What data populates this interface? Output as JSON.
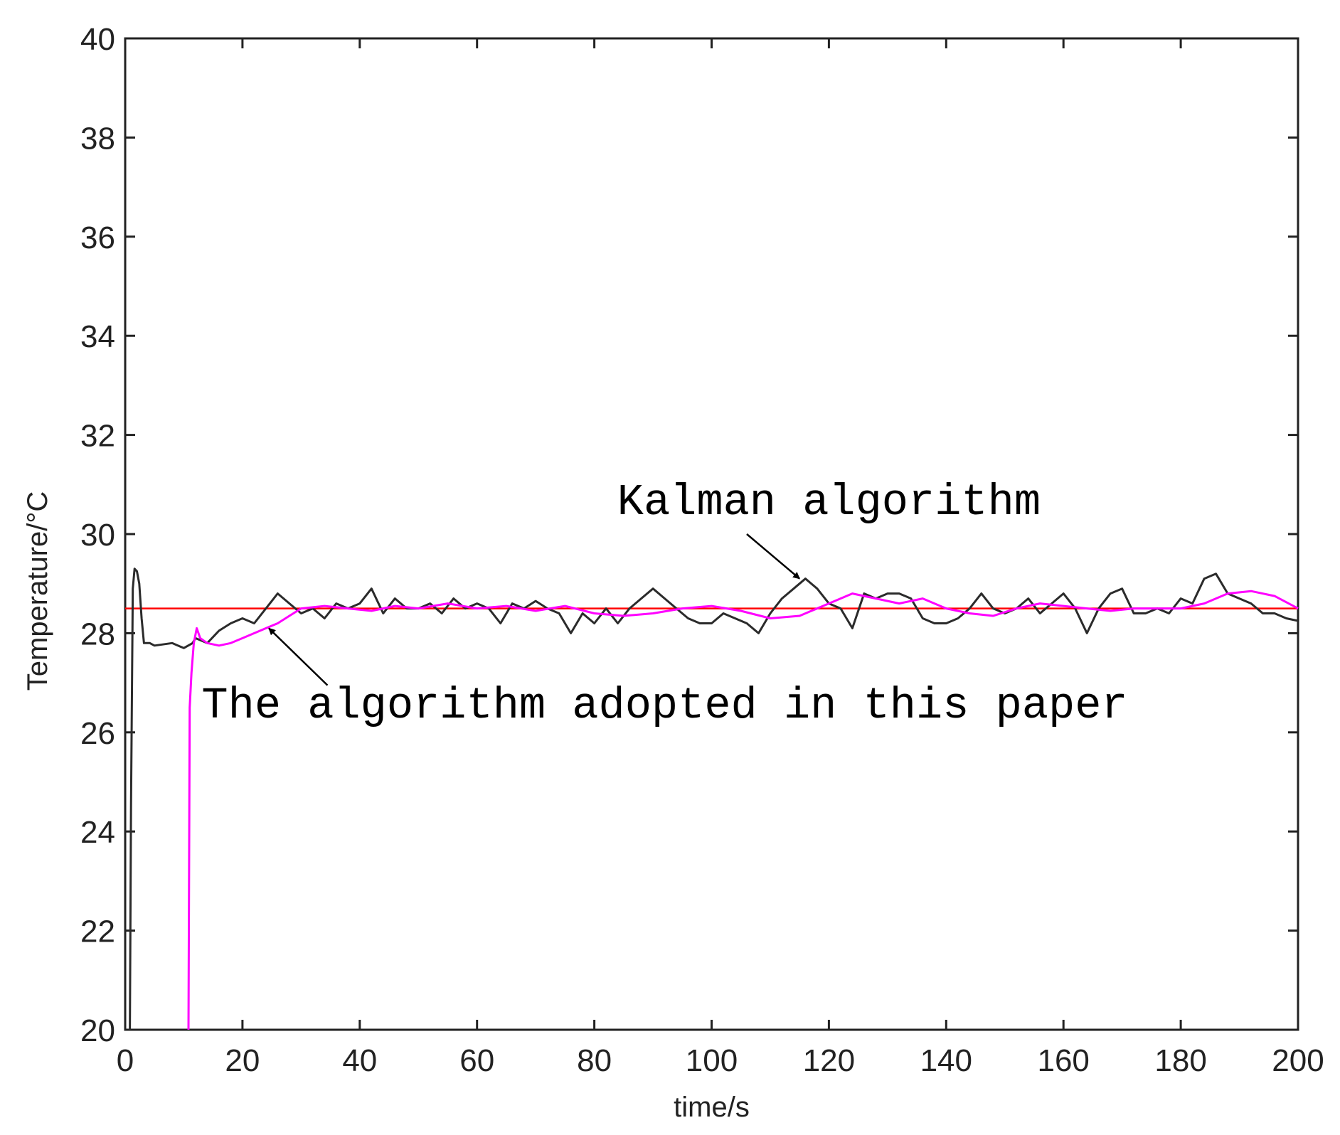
{
  "chart_data": {
    "type": "line",
    "title": "",
    "xlabel": "time/s",
    "ylabel": "Temperature/°C",
    "xlim": [
      0,
      200
    ],
    "ylim": [
      20,
      40
    ],
    "xticks": [
      0,
      20,
      40,
      60,
      80,
      100,
      120,
      140,
      160,
      180,
      200
    ],
    "yticks": [
      20,
      22,
      24,
      26,
      28,
      30,
      32,
      34,
      36,
      38,
      40
    ],
    "xtick_labels": [
      "0",
      "20",
      "40",
      "60",
      "80",
      "100",
      "120",
      "140",
      "160",
      "180",
      "200"
    ],
    "ytick_labels": [
      "20",
      "22",
      "24",
      "26",
      "28",
      "30",
      "32",
      "34",
      "36",
      "38",
      "40"
    ],
    "grid": false,
    "legend": "none",
    "series": [
      {
        "color": "#ff0000",
        "x": [
          0,
          200
        ],
        "y": [
          28.5,
          28.5
        ]
      },
      {
        "color": "#2b2b2b",
        "x": [
          0.8,
          1.0,
          1.3,
          1.6,
          2.0,
          2.4,
          2.8,
          3.2,
          3.6,
          4.2,
          5,
          8,
          10,
          11.5,
          12,
          14,
          16,
          18,
          20,
          22,
          24,
          26,
          28,
          30,
          32,
          34,
          36,
          38,
          40,
          42,
          44,
          46,
          48,
          50,
          52,
          54,
          56,
          58,
          60,
          62,
          64,
          66,
          68,
          70,
          72,
          74,
          76,
          78,
          80,
          82,
          84,
          86,
          88,
          90,
          92,
          94,
          96,
          98,
          100,
          102,
          104,
          106,
          108,
          110,
          112,
          114,
          116,
          118,
          120,
          122,
          124,
          126,
          128,
          130,
          132,
          134,
          136,
          138,
          140,
          142,
          144,
          146,
          148,
          150,
          152,
          154,
          156,
          158,
          160,
          162,
          164,
          166,
          168,
          170,
          172,
          174,
          176,
          178,
          180,
          182,
          184,
          186,
          188,
          190,
          192,
          194,
          196,
          198,
          200
        ],
        "y": [
          20.0,
          24.5,
          28.9,
          29.3,
          29.25,
          29.0,
          28.3,
          27.8,
          27.8,
          27.8,
          27.75,
          27.8,
          27.7,
          27.8,
          27.9,
          27.8,
          28.05,
          28.2,
          28.3,
          28.2,
          28.5,
          28.8,
          28.6,
          28.4,
          28.5,
          28.3,
          28.6,
          28.5,
          28.6,
          28.9,
          28.4,
          28.7,
          28.5,
          28.5,
          28.6,
          28.4,
          28.7,
          28.5,
          28.6,
          28.5,
          28.2,
          28.6,
          28.5,
          28.65,
          28.5,
          28.4,
          28.0,
          28.4,
          28.2,
          28.5,
          28.2,
          28.5,
          28.7,
          28.9,
          28.7,
          28.5,
          28.3,
          28.2,
          28.2,
          28.4,
          28.3,
          28.2,
          28.0,
          28.4,
          28.7,
          28.9,
          29.1,
          28.9,
          28.6,
          28.5,
          28.1,
          28.8,
          28.7,
          28.8,
          28.8,
          28.7,
          28.3,
          28.2,
          28.2,
          28.3,
          28.5,
          28.8,
          28.5,
          28.4,
          28.5,
          28.7,
          28.4,
          28.6,
          28.8,
          28.5,
          28.0,
          28.5,
          28.8,
          28.9,
          28.4,
          28.4,
          28.5,
          28.4,
          28.7,
          28.6,
          29.1,
          29.2,
          28.8,
          28.7,
          28.6,
          28.4,
          28.4,
          28.3,
          28.25
        ]
      },
      {
        "color": "#ff00ff",
        "x": [
          10.8,
          11.0,
          11.3,
          11.7,
          12.2,
          12.8,
          14,
          16,
          18,
          20,
          22,
          24,
          26,
          28,
          30,
          34,
          38,
          42,
          46,
          50,
          55,
          60,
          65,
          70,
          75,
          80,
          85,
          90,
          95,
          100,
          105,
          110,
          115,
          120,
          124,
          128,
          132,
          136,
          140,
          144,
          148,
          152,
          156,
          160,
          164,
          168,
          172,
          176,
          180,
          184,
          188,
          192,
          196,
          200
        ],
        "y": [
          20.0,
          26.5,
          27.2,
          27.8,
          28.1,
          27.9,
          27.8,
          27.75,
          27.8,
          27.9,
          28.0,
          28.1,
          28.2,
          28.35,
          28.5,
          28.55,
          28.5,
          28.45,
          28.55,
          28.5,
          28.6,
          28.5,
          28.55,
          28.45,
          28.55,
          28.4,
          28.35,
          28.4,
          28.5,
          28.55,
          28.45,
          28.3,
          28.35,
          28.6,
          28.8,
          28.7,
          28.6,
          28.7,
          28.5,
          28.4,
          28.35,
          28.5,
          28.6,
          28.55,
          28.5,
          28.45,
          28.5,
          28.5,
          28.5,
          28.6,
          28.8,
          28.85,
          28.75,
          28.5
        ]
      }
    ],
    "annotations": [
      {
        "text": "Kalman algorithm",
        "x": 120,
        "y": 30.4,
        "target_x": 115,
        "target_y": 29.1,
        "arrow_from_x": 106,
        "arrow_from_y": 30.0
      },
      {
        "text": "The algorithm adopted in this paper",
        "x": 92,
        "y": 26.3,
        "target_x": 24.5,
        "target_y": 28.1,
        "arrow_from_x": 34.5,
        "arrow_from_y": 26.95
      }
    ]
  }
}
